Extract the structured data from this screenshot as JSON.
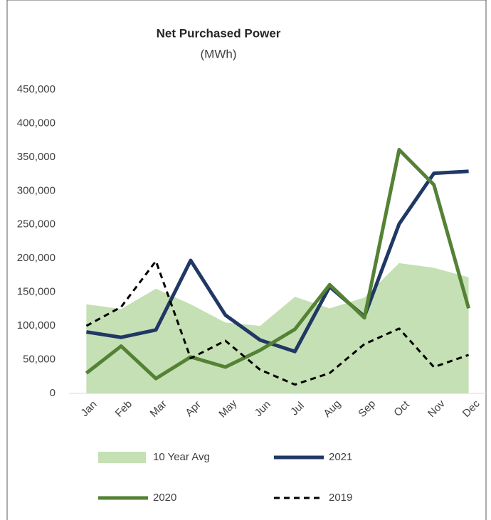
{
  "chart_data": {
    "type": "line",
    "title": "Net Purchased Power",
    "subtitle": "(MWh)",
    "categories": [
      "Jan",
      "Feb",
      "Mar",
      "Apr",
      "May",
      "Jun",
      "Jul",
      "Aug",
      "Sep",
      "Oct",
      "Nov",
      "Dec"
    ],
    "series": [
      {
        "name": "10 Year Avg",
        "type": "area",
        "color": "#c5e0b4",
        "values": [
          132000,
          125000,
          155000,
          132000,
          105000,
          100000,
          143000,
          126000,
          142000,
          193000,
          186000,
          172000
        ]
      },
      {
        "name": "2021",
        "type": "line",
        "color": "#203864",
        "values": [
          91000,
          83000,
          94000,
          197000,
          116000,
          79000,
          62000,
          158000,
          114000,
          251000,
          326000,
          329000
        ]
      },
      {
        "name": "2020",
        "type": "line",
        "color": "#548235",
        "values": [
          30000,
          70000,
          22000,
          54000,
          39000,
          64000,
          95000,
          161000,
          112000,
          361000,
          309000,
          126000
        ]
      },
      {
        "name": "2019",
        "type": "line",
        "color": "#000000",
        "dashed": true,
        "values": [
          100000,
          128000,
          196000,
          52000,
          78000,
          35000,
          13000,
          30000,
          73000,
          96000,
          39000,
          57000
        ]
      }
    ],
    "ylim": [
      0,
      450000
    ],
    "yticks": [
      0,
      {
        "value": 50000,
        "label": "50,000"
      },
      {
        "value": 100000,
        "label": "100,000"
      },
      {
        "value": 150000,
        "label": "150,000"
      },
      {
        "value": 200000,
        "label": "200,000"
      },
      {
        "value": 250000,
        "label": "250,000"
      },
      {
        "value": 300000,
        "label": "300,000"
      },
      {
        "value": 350000,
        "label": "350,000"
      },
      {
        "value": 400000,
        "label": "400,000"
      },
      {
        "value": 450000,
        "label": "450,000"
      }
    ],
    "grid": false,
    "legend": "bottom"
  }
}
